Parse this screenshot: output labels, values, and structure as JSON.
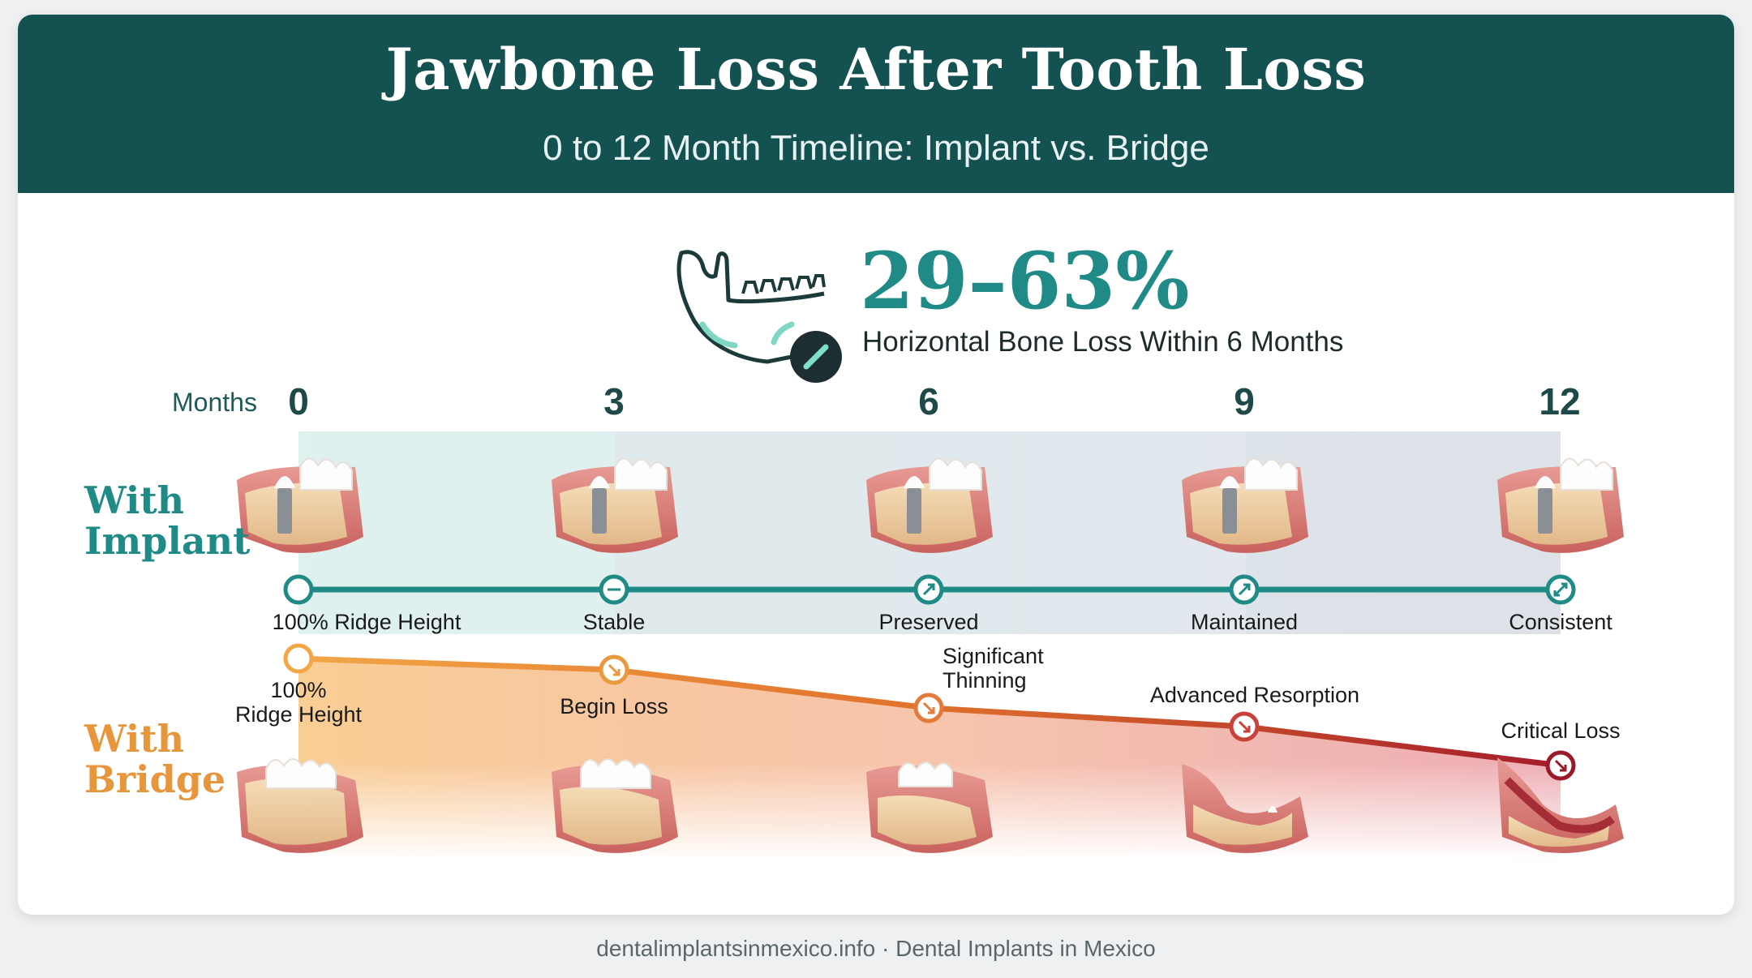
{
  "header": {
    "title": "Jawbone Loss After Tooth Loss",
    "subtitle": "0 to 12 Month Timeline: Implant vs. Bridge"
  },
  "stat": {
    "value": "29–63%",
    "label": "Horizontal Bone Loss Within 6 Months"
  },
  "timeline": {
    "months_label": "Months",
    "months": [
      "0",
      "3",
      "6",
      "9",
      "12"
    ]
  },
  "implant": {
    "label_line1": "With",
    "label_line2": "Implant",
    "color": "#1f8a86",
    "milestones": [
      "100% Ridge Height",
      "Stable",
      "Preserved",
      "Maintained",
      "Consistent"
    ]
  },
  "bridge": {
    "label_line1": "With",
    "label_line2": "Bridge",
    "color": "#e8963c",
    "milestones": [
      {
        "line1": "100%",
        "line2": "Ridge Height"
      },
      {
        "line1": "Begin Loss",
        "line2": ""
      },
      {
        "line1": "Significant",
        "line2": "Thinning"
      },
      {
        "line1": "Advanced Resorption",
        "line2": ""
      },
      {
        "line1": "Critical Loss",
        "line2": ""
      }
    ]
  },
  "footer": "dentalimplantsinmexico.info · Dental Implants in Mexico"
}
